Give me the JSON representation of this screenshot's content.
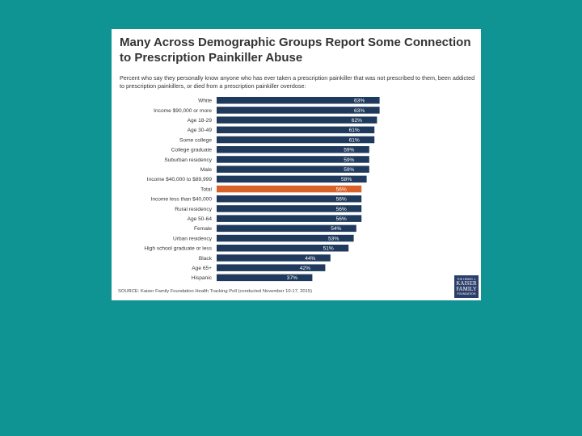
{
  "title": "Many Across Demographic Groups Report Some Connection to Prescription Painkiller Abuse",
  "subtitle": "Percent who say they personally know anyone who has ever taken a prescription painkiller that was not prescribed to them, been addicted to prescription painkillers, or died from a prescription painkiller overdose:",
  "source": "SOURCE: Kaiser Family Foundation Health Tracking Poll (conducted November 10-17, 2015)",
  "logo": {
    "line1": "THE HENRY J.",
    "line2": "KAISER",
    "line3": "FAMILY",
    "line4": "FOUNDATION"
  },
  "colors": {
    "background": "#0f9393",
    "bar": "#1f3a5c",
    "highlight": "#d9622b"
  },
  "chart_data": {
    "type": "bar",
    "orientation": "horizontal",
    "title": "Many Across Demographic Groups Report Some Connection to Prescription Painkiller Abuse",
    "xlabel": "",
    "ylabel": "",
    "xlim": [
      0,
      65
    ],
    "highlight": "Total",
    "categories": [
      "White",
      "Income $90,000 or more",
      "Age 18-29",
      "Age 30-49",
      "Some college",
      "College graduate",
      "Suburban residency",
      "Male",
      "Income $40,000 to $89,999",
      "Total",
      "Income less than $40,000",
      "Rural residency",
      "Age 50-64",
      "Female",
      "Urban residency",
      "High school graduate or less",
      "Black",
      "Age 65+",
      "Hispanic"
    ],
    "values": [
      63,
      63,
      62,
      61,
      61,
      59,
      59,
      59,
      58,
      56,
      56,
      56,
      56,
      54,
      53,
      51,
      44,
      42,
      37
    ],
    "labels": [
      "63%",
      "63%",
      "62%",
      "61%",
      "61%",
      "59%",
      "59%",
      "59%",
      "58%",
      "56%",
      "56%",
      "56%",
      "56%",
      "54%",
      "53%",
      "51%",
      "44%",
      "42%",
      "37%"
    ]
  }
}
